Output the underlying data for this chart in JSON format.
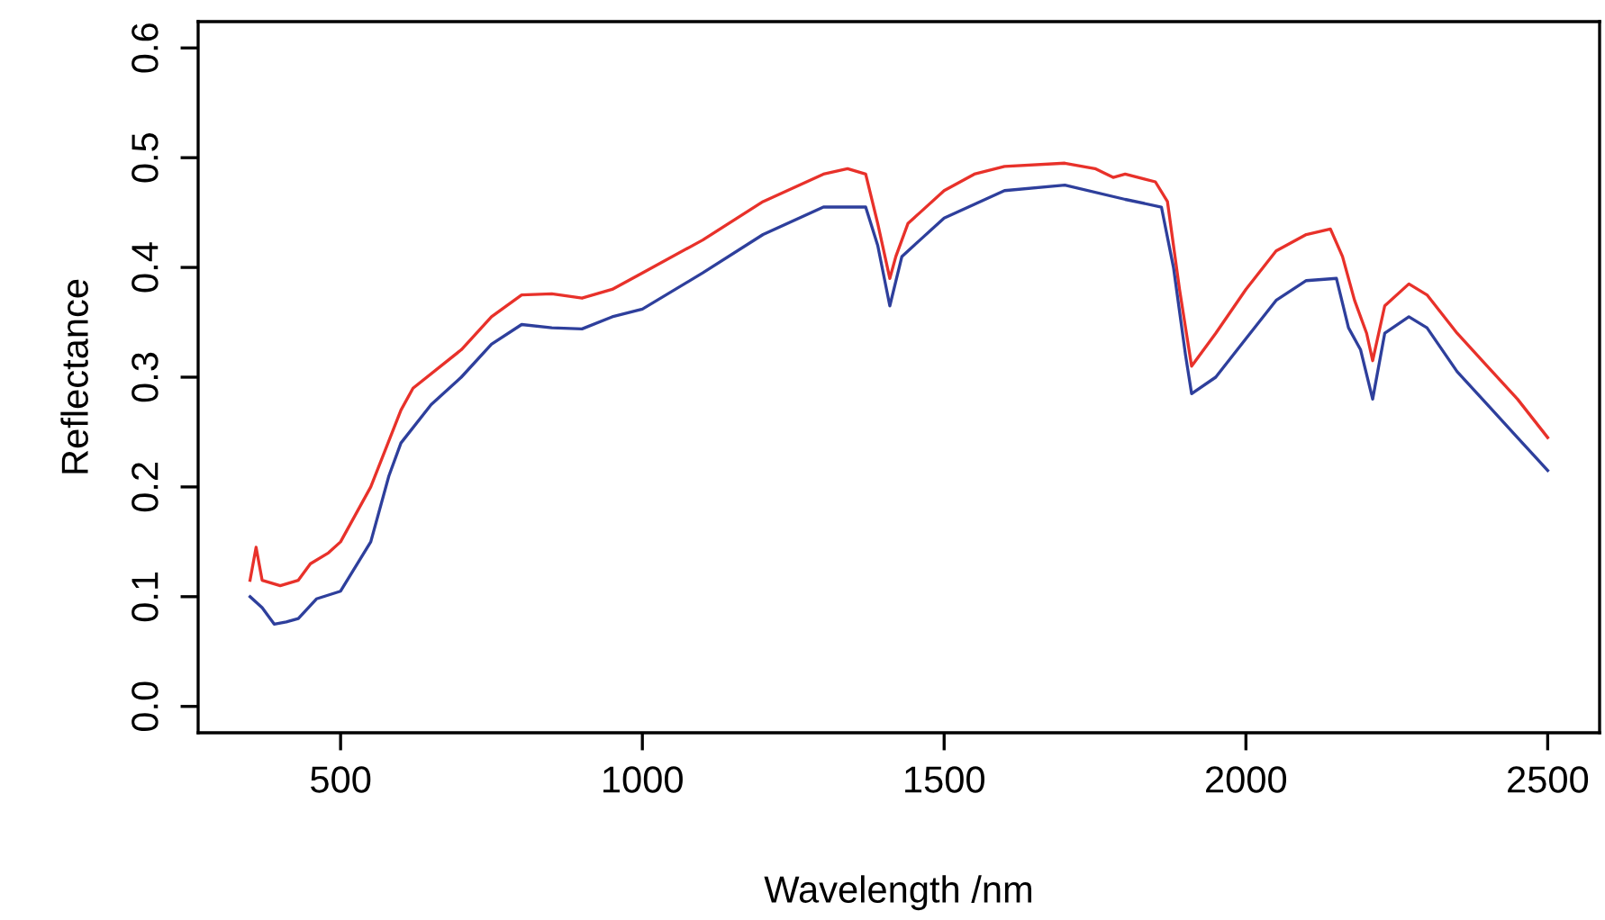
{
  "chart_data": {
    "type": "line",
    "xlabel": "Wavelength /nm",
    "ylabel": "Reflectance",
    "xlim": [
      264,
      2586
    ],
    "xticks": [
      500,
      1000,
      1500,
      2000,
      2500
    ],
    "ylim": [
      -0.024,
      0.624
    ],
    "yticks": [
      {
        "value": 0,
        "label": "0.0"
      },
      0.1,
      0.2,
      0.3,
      0.4,
      0.5,
      0.6
    ],
    "grid": false,
    "marker": "none",
    "line_style": "solid",
    "series": [
      {
        "color": "#e8312a",
        "x": [
          350,
          360,
          370,
          400,
          430,
          450,
          480,
          500,
          550,
          600,
          620,
          700,
          750,
          800,
          850,
          900,
          950,
          1000,
          1100,
          1200,
          1300,
          1340,
          1370,
          1390,
          1410,
          1420,
          1440,
          1460,
          1500,
          1550,
          1600,
          1700,
          1750,
          1780,
          1800,
          1850,
          1870,
          1890,
          1910,
          1950,
          2000,
          2050,
          2100,
          2140,
          2160,
          2180,
          2200,
          2210,
          2230,
          2270,
          2300,
          2350,
          2400,
          2450,
          2500
        ],
        "values": [
          0.115,
          0.145,
          0.115,
          0.11,
          0.115,
          0.13,
          0.14,
          0.15,
          0.2,
          0.27,
          0.29,
          0.325,
          0.355,
          0.375,
          0.376,
          0.372,
          0.38,
          0.395,
          0.425,
          0.46,
          0.485,
          0.49,
          0.485,
          0.44,
          0.39,
          0.41,
          0.44,
          0.45,
          0.47,
          0.485,
          0.492,
          0.495,
          0.49,
          0.482,
          0.485,
          0.478,
          0.46,
          0.38,
          0.31,
          0.34,
          0.38,
          0.415,
          0.43,
          0.435,
          0.41,
          0.37,
          0.34,
          0.315,
          0.365,
          0.385,
          0.375,
          0.34,
          0.31,
          0.28,
          0.245
        ]
      },
      {
        "color": "#2e3f9c",
        "x": [
          350,
          370,
          390,
          410,
          430,
          460,
          500,
          550,
          580,
          600,
          650,
          700,
          750,
          800,
          850,
          900,
          950,
          1000,
          1100,
          1200,
          1300,
          1370,
          1390,
          1410,
          1430,
          1460,
          1500,
          1600,
          1700,
          1800,
          1860,
          1880,
          1900,
          1910,
          1950,
          2000,
          2050,
          2100,
          2150,
          2170,
          2190,
          2210,
          2230,
          2270,
          2300,
          2350,
          2400,
          2450,
          2500
        ],
        "values": [
          0.1,
          0.09,
          0.075,
          0.077,
          0.08,
          0.098,
          0.105,
          0.15,
          0.21,
          0.24,
          0.275,
          0.3,
          0.33,
          0.348,
          0.345,
          0.344,
          0.355,
          0.362,
          0.395,
          0.43,
          0.455,
          0.455,
          0.42,
          0.365,
          0.41,
          0.425,
          0.445,
          0.47,
          0.475,
          0.462,
          0.455,
          0.4,
          0.32,
          0.285,
          0.3,
          0.335,
          0.37,
          0.388,
          0.39,
          0.345,
          0.325,
          0.28,
          0.34,
          0.355,
          0.345,
          0.305,
          0.275,
          0.245,
          0.215
        ]
      }
    ]
  }
}
